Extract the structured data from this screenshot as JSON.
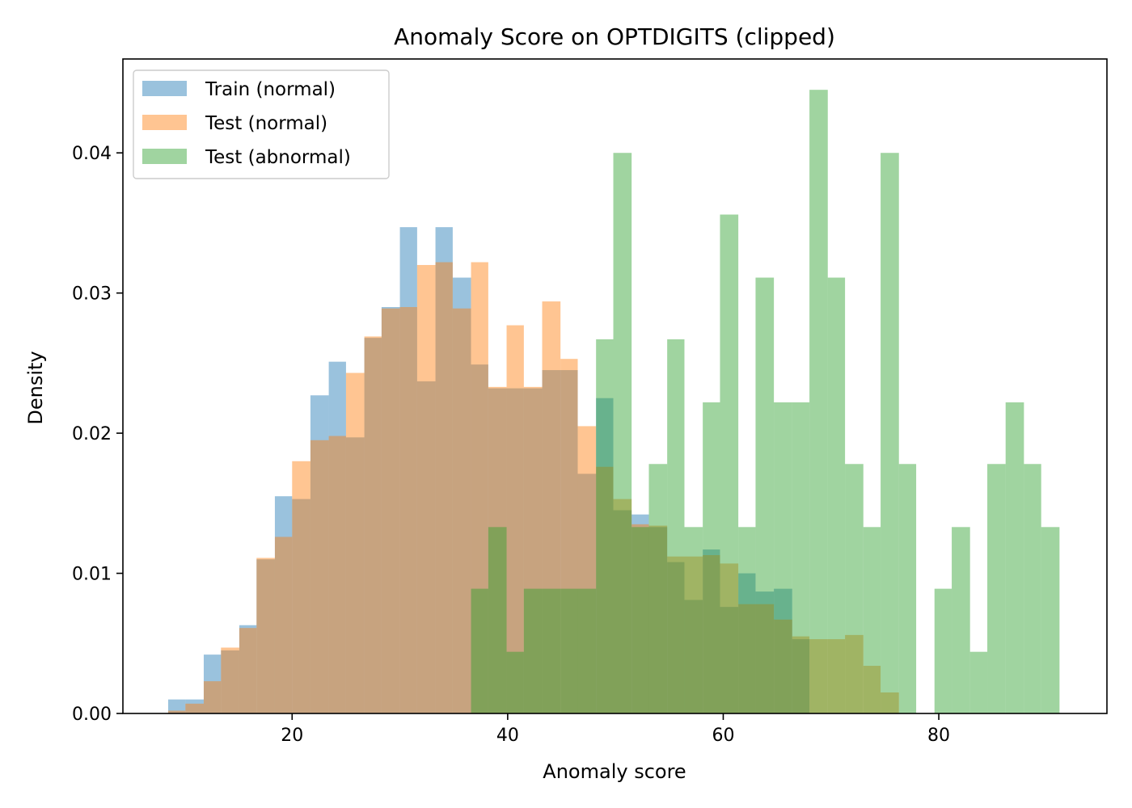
{
  "chart_data": {
    "type": "histogram",
    "title": "Anomaly Score on OPTDIGITS (clipped)",
    "xlabel": "Anomaly score",
    "ylabel": "Density",
    "xlim": [
      4.3,
      95.6
    ],
    "ylim": [
      0,
      0.0467
    ],
    "xticks": [
      20,
      40,
      60,
      80
    ],
    "xtick_labels": [
      "20",
      "40",
      "60",
      "80"
    ],
    "yticks": [
      0,
      0.01,
      0.02,
      0.03,
      0.04
    ],
    "ytick_labels": [
      "0.00",
      "0.01",
      "0.02",
      "0.03",
      "0.04"
    ],
    "grid": false,
    "legend_position": "upper-left",
    "series": [
      {
        "name": "Train (normal)",
        "color": "#1f77b4",
        "alpha": 0.45,
        "bins": [
          [
            8.5,
            10.1,
            0.001
          ],
          [
            10.1,
            11.8,
            0.001
          ],
          [
            11.8,
            13.4,
            0.0042
          ],
          [
            13.4,
            15.1,
            0.0045
          ],
          [
            15.1,
            16.7,
            0.0063
          ],
          [
            16.7,
            18.4,
            0.011
          ],
          [
            18.4,
            20.0,
            0.0155
          ],
          [
            20.0,
            21.7,
            0.0153
          ],
          [
            21.7,
            23.4,
            0.0227
          ],
          [
            23.4,
            25.0,
            0.0251
          ],
          [
            25.0,
            26.7,
            0.0197
          ],
          [
            26.7,
            28.3,
            0.0268
          ],
          [
            28.3,
            30.0,
            0.029
          ],
          [
            30.0,
            31.6,
            0.0347
          ],
          [
            31.6,
            33.3,
            0.0237
          ],
          [
            33.3,
            34.9,
            0.0347
          ],
          [
            34.9,
            36.6,
            0.0311
          ],
          [
            36.6,
            38.2,
            0.0249
          ],
          [
            38.2,
            39.9,
            0.0232
          ],
          [
            39.9,
            41.5,
            0.0232
          ],
          [
            41.5,
            43.2,
            0.0232
          ],
          [
            43.2,
            44.9,
            0.0245
          ],
          [
            44.9,
            46.5,
            0.0245
          ],
          [
            46.5,
            48.2,
            0.0171
          ],
          [
            48.2,
            49.8,
            0.0225
          ],
          [
            49.8,
            51.5,
            0.0145
          ],
          [
            51.5,
            53.1,
            0.0142
          ],
          [
            53.1,
            54.8,
            0.0133
          ],
          [
            54.8,
            56.4,
            0.0108
          ],
          [
            56.4,
            58.1,
            0.0081
          ],
          [
            58.1,
            59.7,
            0.0117
          ],
          [
            59.7,
            61.4,
            0.0076
          ],
          [
            61.4,
            63.0,
            0.01
          ],
          [
            63.0,
            64.7,
            0.0087
          ],
          [
            64.7,
            66.4,
            0.0089
          ],
          [
            66.4,
            68.0,
            0.0053
          ]
        ]
      },
      {
        "name": "Test (normal)",
        "color": "#ff7f0e",
        "alpha": 0.45,
        "bins": [
          [
            8.5,
            10.1,
            0.0002
          ],
          [
            10.1,
            11.8,
            0.0007
          ],
          [
            11.8,
            13.4,
            0.0023
          ],
          [
            13.4,
            15.1,
            0.0047
          ],
          [
            15.1,
            16.7,
            0.0061
          ],
          [
            16.7,
            18.4,
            0.0111
          ],
          [
            18.4,
            20.0,
            0.0126
          ],
          [
            20.0,
            21.7,
            0.018
          ],
          [
            21.7,
            23.4,
            0.0195
          ],
          [
            23.4,
            25.0,
            0.0198
          ],
          [
            25.0,
            26.7,
            0.0243
          ],
          [
            26.7,
            28.3,
            0.0269
          ],
          [
            28.3,
            30.0,
            0.0289
          ],
          [
            30.0,
            31.6,
            0.029
          ],
          [
            31.6,
            33.3,
            0.032
          ],
          [
            33.3,
            34.9,
            0.0322
          ],
          [
            34.9,
            36.6,
            0.0289
          ],
          [
            36.6,
            38.2,
            0.0322
          ],
          [
            38.2,
            39.9,
            0.0233
          ],
          [
            39.9,
            41.5,
            0.0277
          ],
          [
            41.5,
            43.2,
            0.0233
          ],
          [
            43.2,
            44.9,
            0.0294
          ],
          [
            44.9,
            46.5,
            0.0253
          ],
          [
            46.5,
            48.2,
            0.0205
          ],
          [
            48.2,
            49.8,
            0.0176
          ],
          [
            49.8,
            51.5,
            0.0153
          ],
          [
            51.5,
            53.1,
            0.0135
          ],
          [
            53.1,
            54.8,
            0.0134
          ],
          [
            54.8,
            56.4,
            0.0112
          ],
          [
            56.4,
            58.1,
            0.0112
          ],
          [
            58.1,
            59.7,
            0.0113
          ],
          [
            59.7,
            61.4,
            0.0107
          ],
          [
            61.4,
            63.0,
            0.0078
          ],
          [
            63.0,
            64.7,
            0.0078
          ],
          [
            64.7,
            66.4,
            0.0067
          ],
          [
            66.4,
            68.0,
            0.0055
          ],
          [
            68.0,
            69.7,
            0.0053
          ],
          [
            69.7,
            71.3,
            0.0053
          ],
          [
            71.3,
            73.0,
            0.0056
          ],
          [
            73.0,
            74.6,
            0.0034
          ],
          [
            74.6,
            76.3,
            0.0015
          ]
        ]
      },
      {
        "name": "Test (abnormal)",
        "color": "#2ca02c",
        "alpha": 0.45,
        "bins": [
          [
            36.6,
            38.2,
            0.0089
          ],
          [
            38.2,
            39.9,
            0.0133
          ],
          [
            39.9,
            41.5,
            0.0044
          ],
          [
            41.5,
            43.2,
            0.0089
          ],
          [
            43.2,
            44.9,
            0.0089
          ],
          [
            44.9,
            46.5,
            0.0089
          ],
          [
            46.5,
            48.2,
            0.0089
          ],
          [
            48.2,
            49.8,
            0.0267
          ],
          [
            49.8,
            51.5,
            0.04
          ],
          [
            51.5,
            53.1,
            0.0133
          ],
          [
            53.1,
            54.8,
            0.0178
          ],
          [
            54.8,
            56.4,
            0.0267
          ],
          [
            56.4,
            58.1,
            0.0133
          ],
          [
            58.1,
            59.7,
            0.0222
          ],
          [
            59.7,
            61.4,
            0.0356
          ],
          [
            61.4,
            63.0,
            0.0133
          ],
          [
            63.0,
            64.7,
            0.0311
          ],
          [
            64.7,
            66.4,
            0.0222
          ],
          [
            66.4,
            68.0,
            0.0222
          ],
          [
            68.0,
            69.7,
            0.0445
          ],
          [
            69.7,
            71.3,
            0.0311
          ],
          [
            71.3,
            73.0,
            0.0178
          ],
          [
            73.0,
            74.6,
            0.0133
          ],
          [
            74.6,
            76.3,
            0.04
          ],
          [
            76.3,
            77.9,
            0.0178
          ],
          [
            77.9,
            79.6,
            0.0
          ],
          [
            79.6,
            81.2,
            0.0089
          ],
          [
            81.2,
            82.9,
            0.0133
          ],
          [
            82.9,
            84.5,
            0.0044
          ],
          [
            84.5,
            86.2,
            0.0178
          ],
          [
            86.2,
            87.9,
            0.0222
          ],
          [
            87.9,
            89.5,
            0.0178
          ],
          [
            89.5,
            91.2,
            0.0133
          ]
        ]
      }
    ]
  }
}
